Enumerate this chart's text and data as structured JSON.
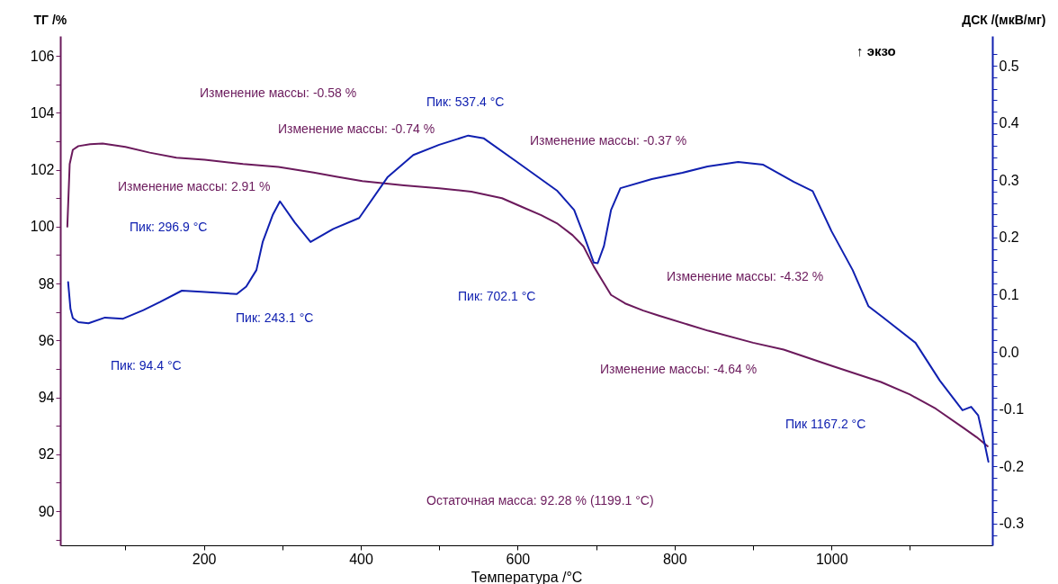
{
  "chart_data": {
    "type": "line",
    "xlabel": "Температура /°C",
    "ylabel": "ТГ /%",
    "y2label": "ДСК /(мкВ/мг)",
    "xlim": [
      17,
      1205
    ],
    "xticks": [
      {
        "value": 100,
        "label": null
      },
      200,
      {
        "value": 300,
        "label": null
      },
      400,
      {
        "value": 500,
        "label": null
      },
      600,
      {
        "value": 700,
        "label": null
      },
      800,
      {
        "value": 900,
        "label": null
      },
      1000,
      {
        "value": 1100,
        "label": null
      }
    ],
    "ylim": [
      88.8,
      106.7
    ],
    "yticks": [
      {
        "value": 89,
        "label": null
      },
      90,
      {
        "value": 91,
        "label": null
      },
      92,
      {
        "value": 93,
        "label": null
      },
      94,
      {
        "value": 95,
        "label": null
      },
      96,
      {
        "value": 97,
        "label": null
      },
      98,
      {
        "value": 99,
        "label": null
      },
      100,
      {
        "value": 101,
        "label": null
      },
      102,
      {
        "value": 103,
        "label": null
      },
      104,
      {
        "value": 105,
        "label": null
      },
      106
    ],
    "y2lim": [
      -0.338,
      0.552
    ],
    "y2ticks": [
      {
        "value": -0.32,
        "label": null
      },
      {
        "value": -0.3,
        "label": "-0.3"
      },
      {
        "value": -0.28,
        "label": null
      },
      {
        "value": -0.26,
        "label": null
      },
      {
        "value": -0.24,
        "label": null
      },
      {
        "value": -0.22,
        "label": null
      },
      {
        "value": -0.2,
        "label": "-0.2"
      },
      {
        "value": -0.18,
        "label": null
      },
      {
        "value": -0.16,
        "label": null
      },
      {
        "value": -0.14,
        "label": null
      },
      {
        "value": -0.12,
        "label": null
      },
      {
        "value": -0.1,
        "label": "-0.1"
      },
      {
        "value": -0.08,
        "label": null
      },
      {
        "value": -0.06,
        "label": null
      },
      {
        "value": -0.04,
        "label": null
      },
      {
        "value": -0.02,
        "label": null
      },
      {
        "value": 0,
        "label": "0.0"
      },
      {
        "value": 0.02,
        "label": null
      },
      {
        "value": 0.04,
        "label": null
      },
      {
        "value": 0.06,
        "label": null
      },
      {
        "value": 0.08,
        "label": null
      },
      {
        "value": 0.1,
        "label": "0.1"
      },
      {
        "value": 0.12,
        "label": null
      },
      {
        "value": 0.14,
        "label": null
      },
      {
        "value": 0.16,
        "label": null
      },
      {
        "value": 0.18,
        "label": null
      },
      {
        "value": 0.2,
        "label": "0.2"
      },
      {
        "value": 0.22,
        "label": null
      },
      {
        "value": 0.24,
        "label": null
      },
      {
        "value": 0.26,
        "label": null
      },
      {
        "value": 0.28,
        "label": null
      },
      {
        "value": 0.3,
        "label": "0.3"
      },
      {
        "value": 0.32,
        "label": null
      },
      {
        "value": 0.34,
        "label": null
      },
      {
        "value": 0.36,
        "label": null
      },
      {
        "value": 0.38,
        "label": null
      },
      {
        "value": 0.4,
        "label": "0.4"
      },
      {
        "value": 0.42,
        "label": null
      },
      {
        "value": 0.44,
        "label": null
      },
      {
        "value": 0.46,
        "label": null
      },
      {
        "value": 0.48,
        "label": null
      },
      {
        "value": 0.5,
        "label": "0.5"
      },
      {
        "value": 0.52,
        "label": null
      }
    ],
    "series": [
      {
        "color": "#6b1a5c",
        "x": [
          26,
          29,
          33,
          40,
          55,
          71,
          100,
          131,
          165,
          201,
          250,
          295,
          340,
          370,
          402,
          455,
          500,
          541,
          580,
          605,
          630,
          651,
          670,
          684,
          697,
          708,
          719,
          737,
          760,
          779,
          843,
          900,
          939,
          1001,
          1063,
          1100,
          1133,
          1168,
          1185,
          1199.1
        ],
        "values": [
          100.0,
          102.2,
          102.7,
          102.83,
          102.9,
          102.92,
          102.8,
          102.6,
          102.42,
          102.35,
          102.2,
          102.1,
          101.9,
          101.75,
          101.6,
          101.45,
          101.35,
          101.23,
          101.0,
          100.7,
          100.4,
          100.1,
          99.7,
          99.3,
          98.6,
          98.1,
          97.6,
          97.3,
          97.05,
          96.88,
          96.34,
          95.92,
          95.68,
          95.1,
          94.54,
          94.1,
          93.6,
          92.93,
          92.6,
          92.28
        ]
      },
      {
        "axis": "y2",
        "color": "#1020b0",
        "x": [
          27,
          30,
          33,
          40,
          53,
          74,
          97,
          123,
          144,
          172,
          197,
          242,
          254,
          267,
          275,
          288,
          297,
          316,
          336,
          365,
          398,
          434,
          467,
          500,
          537,
          557,
          598,
          650,
          672,
          684,
          697,
          702,
          710,
          719,
          731,
          771,
          810,
          842,
          881,
          913,
          952,
          976,
          1000,
          1027,
          1047,
          1065,
          1107,
          1138,
          1167,
          1178,
          1187,
          1195,
          1200
        ],
        "values": [
          0.122,
          0.075,
          0.059,
          0.052,
          0.05,
          0.06,
          0.058,
          0.073,
          0.087,
          0.107,
          0.105,
          0.101,
          0.114,
          0.143,
          0.192,
          0.24,
          0.263,
          0.226,
          0.192,
          0.215,
          0.234,
          0.305,
          0.344,
          0.362,
          0.378,
          0.373,
          0.333,
          0.282,
          0.248,
          0.205,
          0.156,
          0.155,
          0.185,
          0.248,
          0.286,
          0.302,
          0.313,
          0.324,
          0.332,
          0.327,
          0.297,
          0.281,
          0.211,
          0.143,
          0.08,
          0.061,
          0.016,
          -0.05,
          -0.102,
          -0.096,
          -0.111,
          -0.159,
          -0.192
        ]
      }
    ],
    "annotations": [
      "↑ экзо",
      "Изменение массы: -0.58 %",
      "Изменение массы: -0.74 %",
      "Изменение массы: 2.91 %",
      "Пик: 296.9 °C",
      "Пик: 537.4 °C",
      "Изменение массы: -0.37 %",
      "Изменение массы: -4.32 %",
      "Пик: 702.1 °C",
      "Пик: 243.1 °C",
      "Пик: 94.4 °C",
      "Изменение массы: -4.64 %",
      "Пик 1167.2 °C",
      "Остаточная масса: 92.28 % (1199.1 °C)"
    ]
  }
}
